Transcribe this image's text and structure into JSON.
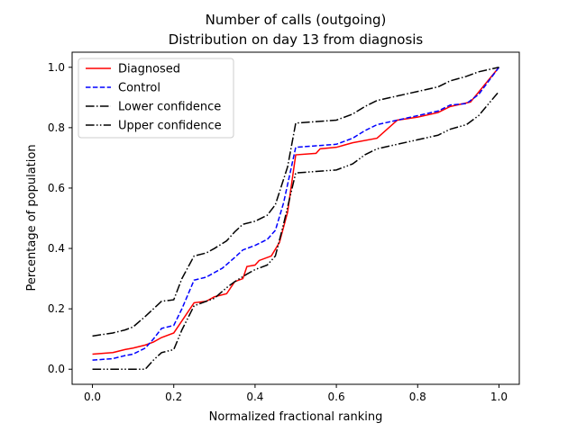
{
  "chart_data": {
    "type": "line",
    "title": "Number of calls (outgoing)",
    "subtitle": "Distribution on day 13 from diagnosis",
    "xlabel": "Normalized fractional ranking",
    "ylabel": "Percentage of population",
    "xlim": [
      -0.05,
      1.05
    ],
    "ylim": [
      -0.05,
      1.05
    ],
    "x_ticks": [
      0.0,
      0.2,
      0.4,
      0.6,
      0.8,
      1.0
    ],
    "x_tick_labels": [
      "0.0",
      "0.2",
      "0.4",
      "0.6",
      "0.8",
      "1.0"
    ],
    "y_ticks": [
      0.0,
      0.2,
      0.4,
      0.6,
      0.8,
      1.0
    ],
    "y_tick_labels": [
      "0.0",
      "0.2",
      "0.4",
      "0.6",
      "0.8",
      "1.0"
    ],
    "grid": false,
    "legend_position": "top-left",
    "series": [
      {
        "name": "Diagnosed",
        "color": "#ff0000",
        "dash": "solid",
        "points": [
          [
            0.0,
            0.05
          ],
          [
            0.05,
            0.055
          ],
          [
            0.08,
            0.065
          ],
          [
            0.1,
            0.07
          ],
          [
            0.13,
            0.08
          ],
          [
            0.15,
            0.09
          ],
          [
            0.17,
            0.105
          ],
          [
            0.2,
            0.12
          ],
          [
            0.22,
            0.16
          ],
          [
            0.25,
            0.22
          ],
          [
            0.28,
            0.225
          ],
          [
            0.3,
            0.24
          ],
          [
            0.33,
            0.25
          ],
          [
            0.35,
            0.29
          ],
          [
            0.37,
            0.3
          ],
          [
            0.38,
            0.34
          ],
          [
            0.4,
            0.345
          ],
          [
            0.41,
            0.36
          ],
          [
            0.44,
            0.375
          ],
          [
            0.46,
            0.42
          ],
          [
            0.48,
            0.52
          ],
          [
            0.5,
            0.71
          ],
          [
            0.55,
            0.715
          ],
          [
            0.56,
            0.73
          ],
          [
            0.6,
            0.735
          ],
          [
            0.64,
            0.75
          ],
          [
            0.7,
            0.765
          ],
          [
            0.75,
            0.825
          ],
          [
            0.8,
            0.835
          ],
          [
            0.85,
            0.85
          ],
          [
            0.88,
            0.87
          ],
          [
            0.93,
            0.885
          ],
          [
            1.0,
            1.0
          ]
        ]
      },
      {
        "name": "Control",
        "color": "#0000ff",
        "dash": "dashed",
        "points": [
          [
            0.0,
            0.03
          ],
          [
            0.05,
            0.035
          ],
          [
            0.08,
            0.045
          ],
          [
            0.1,
            0.05
          ],
          [
            0.13,
            0.07
          ],
          [
            0.15,
            0.1
          ],
          [
            0.17,
            0.135
          ],
          [
            0.2,
            0.145
          ],
          [
            0.22,
            0.2
          ],
          [
            0.25,
            0.295
          ],
          [
            0.28,
            0.305
          ],
          [
            0.3,
            0.32
          ],
          [
            0.32,
            0.335
          ],
          [
            0.35,
            0.37
          ],
          [
            0.37,
            0.395
          ],
          [
            0.4,
            0.41
          ],
          [
            0.43,
            0.43
          ],
          [
            0.45,
            0.46
          ],
          [
            0.47,
            0.55
          ],
          [
            0.5,
            0.735
          ],
          [
            0.55,
            0.74
          ],
          [
            0.6,
            0.745
          ],
          [
            0.64,
            0.765
          ],
          [
            0.67,
            0.79
          ],
          [
            0.7,
            0.81
          ],
          [
            0.75,
            0.825
          ],
          [
            0.8,
            0.84
          ],
          [
            0.85,
            0.855
          ],
          [
            0.88,
            0.875
          ],
          [
            0.92,
            0.88
          ],
          [
            0.95,
            0.91
          ],
          [
            1.0,
            1.0
          ]
        ]
      },
      {
        "name": "Lower confidence",
        "color": "#000000",
        "dash": "dashdot",
        "points": [
          [
            0.0,
            0.11
          ],
          [
            0.05,
            0.12
          ],
          [
            0.08,
            0.13
          ],
          [
            0.1,
            0.14
          ],
          [
            0.13,
            0.175
          ],
          [
            0.15,
            0.2
          ],
          [
            0.17,
            0.225
          ],
          [
            0.2,
            0.23
          ],
          [
            0.22,
            0.3
          ],
          [
            0.25,
            0.375
          ],
          [
            0.28,
            0.385
          ],
          [
            0.3,
            0.4
          ],
          [
            0.33,
            0.425
          ],
          [
            0.35,
            0.455
          ],
          [
            0.37,
            0.48
          ],
          [
            0.4,
            0.49
          ],
          [
            0.43,
            0.51
          ],
          [
            0.45,
            0.545
          ],
          [
            0.48,
            0.67
          ],
          [
            0.5,
            0.815
          ],
          [
            0.55,
            0.82
          ],
          [
            0.6,
            0.825
          ],
          [
            0.64,
            0.845
          ],
          [
            0.67,
            0.87
          ],
          [
            0.7,
            0.89
          ],
          [
            0.75,
            0.905
          ],
          [
            0.8,
            0.92
          ],
          [
            0.85,
            0.935
          ],
          [
            0.88,
            0.955
          ],
          [
            0.92,
            0.97
          ],
          [
            0.95,
            0.985
          ],
          [
            1.0,
            1.0
          ]
        ]
      },
      {
        "name": "Upper confidence",
        "color": "#000000",
        "dash": "dashdotdot",
        "points": [
          [
            0.0,
            0.0
          ],
          [
            0.05,
            0.0
          ],
          [
            0.1,
            0.0
          ],
          [
            0.13,
            0.0
          ],
          [
            0.15,
            0.03
          ],
          [
            0.17,
            0.055
          ],
          [
            0.2,
            0.065
          ],
          [
            0.22,
            0.13
          ],
          [
            0.25,
            0.21
          ],
          [
            0.28,
            0.225
          ],
          [
            0.3,
            0.235
          ],
          [
            0.33,
            0.27
          ],
          [
            0.35,
            0.29
          ],
          [
            0.38,
            0.315
          ],
          [
            0.4,
            0.33
          ],
          [
            0.43,
            0.345
          ],
          [
            0.45,
            0.375
          ],
          [
            0.47,
            0.48
          ],
          [
            0.5,
            0.65
          ],
          [
            0.55,
            0.655
          ],
          [
            0.6,
            0.66
          ],
          [
            0.64,
            0.68
          ],
          [
            0.67,
            0.71
          ],
          [
            0.7,
            0.73
          ],
          [
            0.75,
            0.745
          ],
          [
            0.8,
            0.76
          ],
          [
            0.85,
            0.775
          ],
          [
            0.88,
            0.795
          ],
          [
            0.92,
            0.81
          ],
          [
            0.95,
            0.84
          ],
          [
            1.0,
            0.92
          ]
        ]
      }
    ]
  }
}
